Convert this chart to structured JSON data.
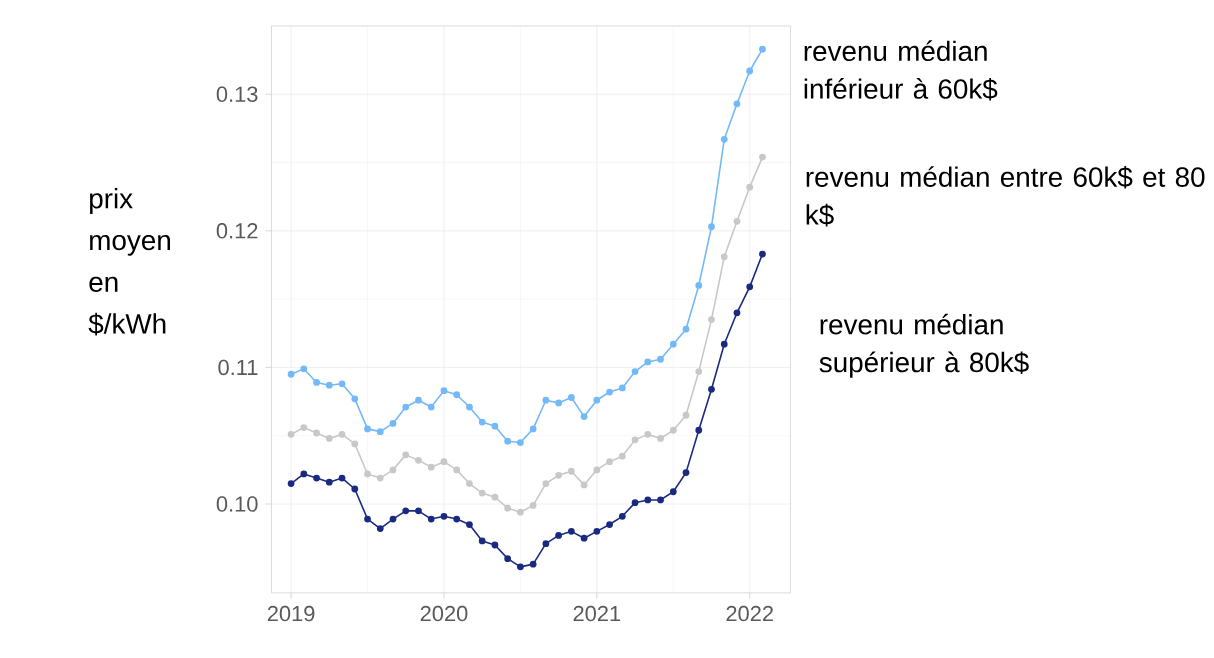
{
  "chart_data": {
    "type": "line",
    "ylabel": "prix moyen en $/kWh",
    "marker": "circle",
    "grid": true,
    "x": [
      "2019-01",
      "2019-02",
      "2019-03",
      "2019-04",
      "2019-05",
      "2019-06",
      "2019-07",
      "2019-08",
      "2019-09",
      "2019-10",
      "2019-11",
      "2019-12",
      "2020-01",
      "2020-02",
      "2020-03",
      "2020-04",
      "2020-05",
      "2020-06",
      "2020-07",
      "2020-08",
      "2020-09",
      "2020-10",
      "2020-11",
      "2020-12",
      "2021-01",
      "2021-02",
      "2021-03",
      "2021-04",
      "2021-05",
      "2021-06",
      "2021-07",
      "2021-08",
      "2021-09",
      "2021-10",
      "2021-11",
      "2021-12",
      "2022-01",
      "2022-02"
    ],
    "xlim": [
      "2018-11-15",
      "2022-04-07"
    ],
    "xticks": [
      "2019",
      "2020",
      "2021",
      "2022"
    ],
    "ylim": [
      0.0935,
      0.135
    ],
    "yticks": [
      {
        "value": 0.1,
        "label": "0.10"
      },
      {
        "value": 0.11,
        "label": "0.11"
      },
      {
        "value": 0.12,
        "label": "0.12"
      },
      {
        "value": 0.13,
        "label": "0.13"
      }
    ],
    "series": [
      {
        "name": "revenu médian inférieur à 60k$",
        "color": "#74b9f7",
        "values": [
          0.1095,
          0.1099,
          0.1089,
          0.1087,
          0.1088,
          0.1077,
          0.1055,
          0.1053,
          0.1059,
          0.1071,
          0.1076,
          0.1071,
          0.1083,
          0.108,
          0.1071,
          0.106,
          0.1057,
          0.1046,
          0.1045,
          0.1055,
          0.1076,
          0.1074,
          0.1078,
          0.1064,
          0.1076,
          0.1082,
          0.1085,
          0.1097,
          0.1104,
          0.1106,
          0.1117,
          0.1128,
          0.116,
          0.1203,
          0.1267,
          0.1293,
          0.1317,
          0.1333
        ]
      },
      {
        "name": "revenu médian entre 60k$ et 80 k$",
        "color": "#c8c8c8",
        "values": [
          0.1051,
          0.1056,
          0.1052,
          0.1048,
          0.1051,
          0.1044,
          0.1022,
          0.1019,
          0.1025,
          0.1036,
          0.1032,
          0.1027,
          0.1031,
          0.1025,
          0.1015,
          0.1008,
          0.1005,
          0.0997,
          0.0994,
          0.0999,
          0.1015,
          0.1021,
          0.1024,
          0.1014,
          0.1025,
          0.1031,
          0.1035,
          0.1047,
          0.1051,
          0.1048,
          0.1054,
          0.1065,
          0.1097,
          0.1135,
          0.1181,
          0.1207,
          0.1232,
          0.1254
        ]
      },
      {
        "name": "revenu médian supérieur à 80k$",
        "color": "#1a2a80",
        "values": [
          0.1015,
          0.1022,
          0.1019,
          0.1016,
          0.1019,
          0.1011,
          0.0989,
          0.0982,
          0.0989,
          0.0995,
          0.0995,
          0.0989,
          0.0991,
          0.0989,
          0.0985,
          0.0973,
          0.097,
          0.096,
          0.0954,
          0.0956,
          0.0971,
          0.0977,
          0.098,
          0.0975,
          0.098,
          0.0985,
          0.0991,
          0.1001,
          0.1003,
          0.1003,
          0.1009,
          0.1023,
          0.1054,
          0.1084,
          0.1117,
          0.114,
          0.1159,
          0.1183
        ]
      }
    ]
  }
}
